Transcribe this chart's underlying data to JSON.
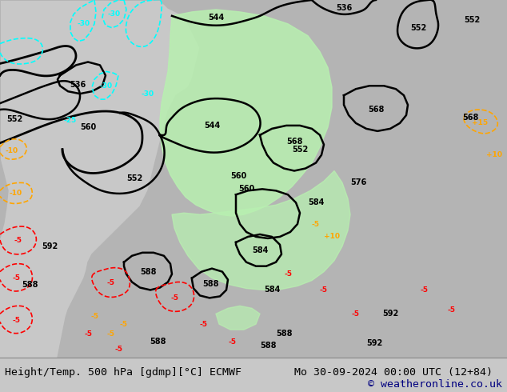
{
  "title_left": "Height/Temp. 500 hPa [gdmp][°C] ECMWF",
  "title_right": "Mo 30-09-2024 00:00 UTC (12+84)",
  "copyright": "© weatheronline.co.uk",
  "bg_color": "#c8c8c8",
  "map_bg_color": "#c8c8c8",
  "bottom_bar_color": "#e0e0e0",
  "title_font_size": 9.5,
  "copyright_font_size": 9.5,
  "figsize": [
    6.34,
    4.9
  ],
  "dpi": 100,
  "map_xlim": [
    0,
    634
  ],
  "map_ylim": [
    0,
    450
  ],
  "green_light": "#b8f0b0",
  "green_mid": "#90e880",
  "gray_land": "#b4b4b4",
  "gray_sea": "#c8c8c8"
}
